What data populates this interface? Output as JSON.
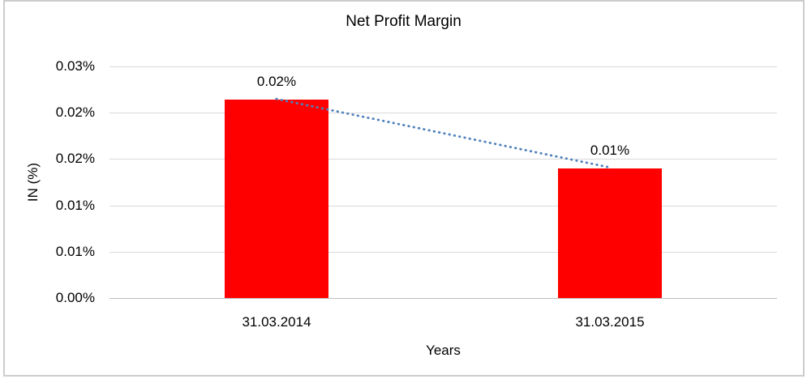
{
  "chart_data": {
    "type": "bar",
    "title": "Net Profit Margin",
    "xlabel": "Years",
    "ylabel": "IN (%)",
    "categories": [
      "31.03.2014",
      "31.03.2015"
    ],
    "values": [
      0.0214,
      0.014
    ],
    "data_labels": [
      "0.02%",
      "0.01%"
    ],
    "y_tick_labels_top_to_bottom": [
      "0.03%",
      "0.02%",
      "0.02%",
      "0.01%",
      "0.01%",
      "0.00%"
    ],
    "ylim": [
      0,
      0.025
    ],
    "y_major_unit": 0.005,
    "grid": true,
    "legend": "none",
    "trendline": {
      "type": "linear",
      "style": "dotted",
      "connects": "tops of bars"
    },
    "colors": {
      "bar": "#ff0000",
      "trendline": "#4f81bd",
      "gridline": "#d9d9d9",
      "axis_line": "#bfbfbf",
      "frame": "#cccccc",
      "text": "#000000"
    }
  }
}
